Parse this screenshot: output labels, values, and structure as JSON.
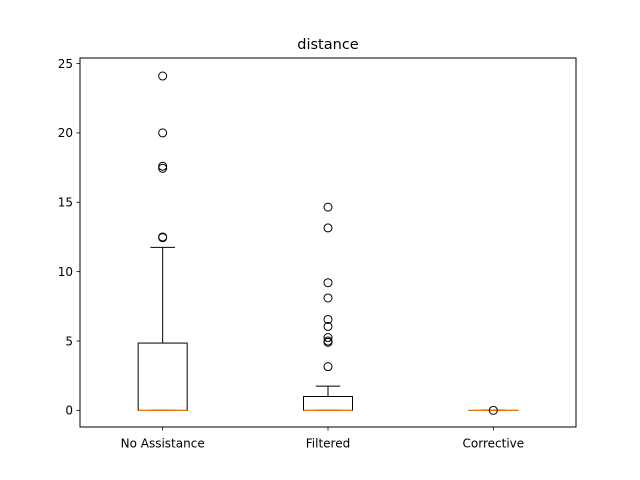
{
  "chart_data": {
    "type": "boxplot",
    "title": "distance",
    "xlabel": "",
    "ylabel": "",
    "ylim": [
      -1.2,
      25.4
    ],
    "yticks": [
      0,
      5,
      10,
      15,
      20,
      25
    ],
    "grid": false,
    "colors": {
      "box": "#000000",
      "median": "#ff7f0e",
      "flier": "#000000",
      "background": "#ffffff"
    },
    "categories": [
      "No Assistance",
      "Filtered",
      "Corrective"
    ],
    "boxes": [
      {
        "category": "No Assistance",
        "q1": 0.0,
        "median": 0.0,
        "q3": 4.85,
        "whisker_low": 0.0,
        "whisker_high": 11.75,
        "fliers": [
          24.1,
          20.0,
          17.6,
          17.45,
          12.5,
          12.45
        ]
      },
      {
        "category": "Filtered",
        "q1": 0.0,
        "median": 0.0,
        "q3": 1.0,
        "whisker_low": 0.0,
        "whisker_high": 1.75,
        "fliers": [
          14.65,
          13.15,
          9.2,
          8.1,
          6.55,
          6.05,
          5.25,
          5.0,
          4.9,
          3.15
        ]
      },
      {
        "category": "Corrective",
        "q1": 0.0,
        "median": 0.0,
        "q3": 0.0,
        "whisker_low": 0.0,
        "whisker_high": 0.0,
        "fliers": [
          0.0
        ]
      }
    ]
  }
}
